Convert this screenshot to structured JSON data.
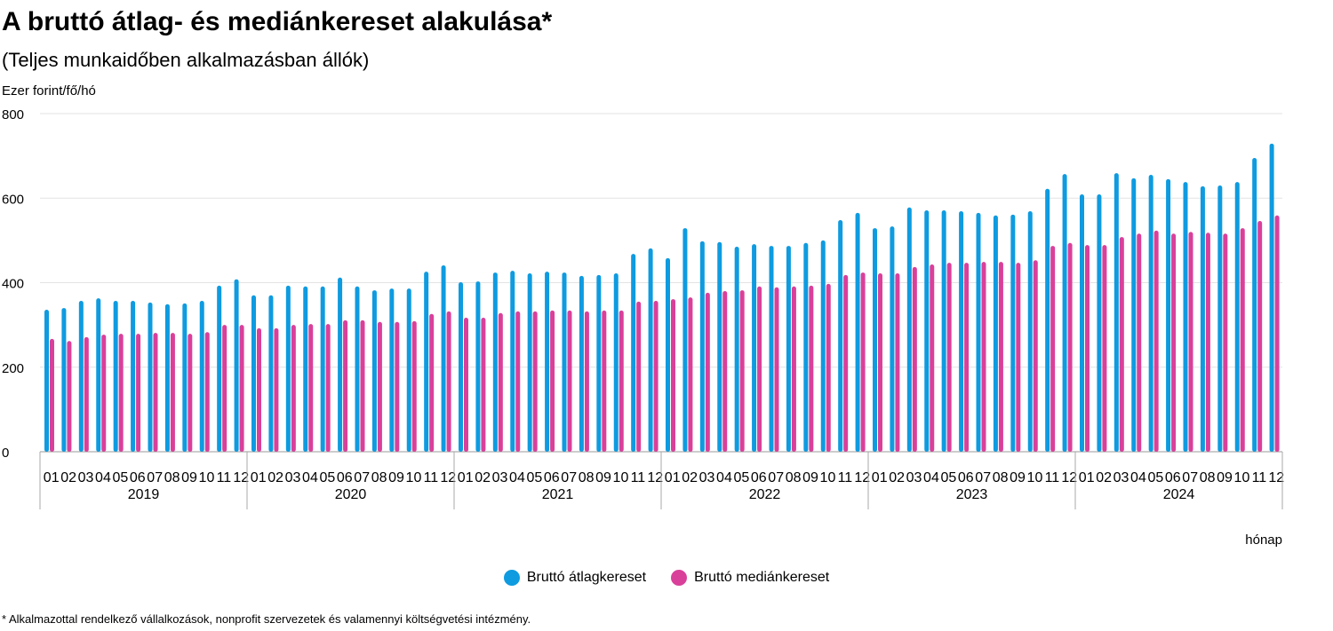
{
  "chart_data": {
    "type": "bar",
    "title": "A bruttó átlag- és mediánkereset alakulása*",
    "subtitle": "(Teljes munkaidőben alkalmazásban állók)",
    "ylabel": "Ezer forint/fő/hó",
    "xlabel": "hónap",
    "ylim": [
      0,
      800
    ],
    "yticks": [
      0,
      200,
      400,
      600,
      800
    ],
    "grid": true,
    "legend_placement": "bottom",
    "years": [
      "2019",
      "2020",
      "2021",
      "2022",
      "2023",
      "2024"
    ],
    "months": [
      "01",
      "02",
      "03",
      "04",
      "05",
      "06",
      "07",
      "08",
      "09",
      "10",
      "11",
      "12"
    ],
    "series": [
      {
        "name": "Bruttó átlagkereset",
        "color": "#0e9be0",
        "values": [
          336,
          340,
          357,
          363,
          357,
          357,
          353,
          349,
          351,
          357,
          393,
          408,
          370,
          370,
          393,
          391,
          391,
          412,
          391,
          382,
          386,
          386,
          426,
          441,
          401,
          403,
          424,
          428,
          422,
          426,
          424,
          416,
          418,
          422,
          468,
          481,
          458,
          529,
          498,
          496,
          485,
          491,
          487,
          487,
          494,
          500,
          548,
          565,
          529,
          533,
          578,
          571,
          571,
          569,
          565,
          559,
          561,
          569,
          622,
          657,
          609,
          609,
          659,
          647,
          655,
          645,
          638,
          628,
          630,
          638,
          695,
          729
        ]
      },
      {
        "name": "Bruttó mediánkereset",
        "color": "#d9409a",
        "values": [
          267,
          262,
          271,
          277,
          279,
          279,
          281,
          281,
          279,
          283,
          300,
          300,
          292,
          292,
          300,
          302,
          302,
          311,
          311,
          307,
          307,
          309,
          326,
          332,
          317,
          317,
          328,
          332,
          332,
          334,
          334,
          332,
          334,
          334,
          355,
          357,
          361,
          365,
          376,
          380,
          382,
          391,
          389,
          391,
          393,
          397,
          418,
          424,
          422,
          422,
          437,
          443,
          447,
          447,
          449,
          449,
          447,
          453,
          487,
          494,
          489,
          489,
          508,
          516,
          523,
          516,
          520,
          518,
          516,
          529,
          546,
          559
        ]
      }
    ]
  },
  "footnote": "* Alkalmazottal rendelkező vállalkozások, nonprofit szervezetek és valamennyi költségvetési intézmény."
}
